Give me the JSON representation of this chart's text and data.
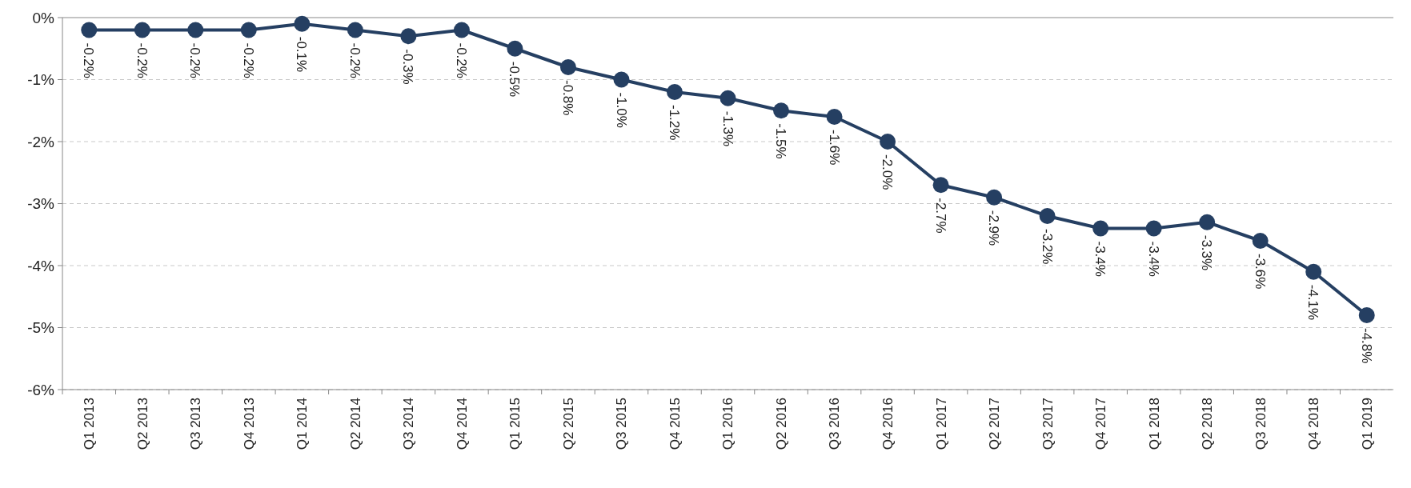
{
  "chart_data": {
    "type": "line",
    "categories": [
      "Q1 2013",
      "Q2 2013",
      "Q3 2013",
      "Q4 2013",
      "Q1 2014",
      "Q2 2014",
      "Q3 2014",
      "Q4 2014",
      "Q1 2015",
      "Q2 2015",
      "Q3 2015",
      "Q4 2015",
      "Q1 2016",
      "Q2 2016",
      "Q3 2016",
      "Q4 2016",
      "Q1 2017",
      "Q2 2017",
      "Q3 2017",
      "Q4 2017",
      "Q1 2018",
      "Q2 2018",
      "Q3 2018",
      "Q4 2018",
      "Q1 2019"
    ],
    "series": [
      {
        "color": "#253f62",
        "values": [
          -0.2,
          -0.2,
          -0.2,
          -0.2,
          -0.1,
          -0.2,
          -0.3,
          -0.2,
          -0.5,
          -0.8,
          -1.0,
          -1.2,
          -1.3,
          -1.5,
          -1.6,
          -2.0,
          -2.7,
          -2.9,
          -3.2,
          -3.4,
          -3.4,
          -3.3,
          -3.6,
          -4.1,
          -4.8
        ]
      }
    ],
    "ylim": [
      -6,
      0
    ],
    "yticks": [
      {
        "value": 0,
        "label": "0%"
      },
      {
        "value": -1,
        "label": "-1%"
      },
      {
        "value": -2,
        "label": "-2%"
      },
      {
        "value": -3,
        "label": "-3%"
      },
      {
        "value": -4,
        "label": "-4%"
      },
      {
        "value": -5,
        "label": "-5%"
      },
      {
        "value": -6,
        "label": "-6%"
      }
    ],
    "value_labels": [
      "-0.2%",
      "-0.2%",
      "-0.2%",
      "-0.2%",
      "-0.1%",
      "-0.2%",
      "-0.3%",
      "-0.2%",
      "-0.5%",
      "-0.8%",
      "-1.0%",
      "-1.2%",
      "-1.3%",
      "-1.5%",
      "-1.6%",
      "-2.0%",
      "-2.7%",
      "-2.9%",
      "-3.2%",
      "-3.4%",
      "-3.4%",
      "-3.3%",
      "-3.6%",
      "-4.1%",
      "-4.8%"
    ],
    "grid": "y",
    "marker": "circle",
    "line_style": "solid"
  }
}
